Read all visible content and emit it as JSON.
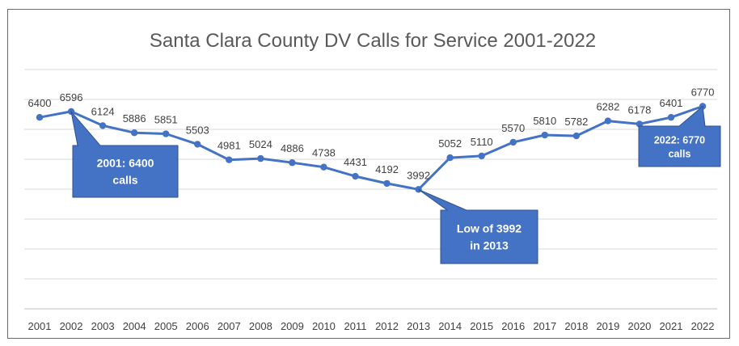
{
  "chart_data": {
    "type": "line",
    "title": "Santa Clara County DV Calls for Service 2001-2022",
    "xlabel": "",
    "ylabel": "",
    "ylim": [
      0,
      8000
    ],
    "grid": true,
    "categories": [
      "2001",
      "2002",
      "2003",
      "2004",
      "2005",
      "2006",
      "2007",
      "2008",
      "2009",
      "2010",
      "2011",
      "2012",
      "2013",
      "2014",
      "2015",
      "2016",
      "2017",
      "2018",
      "2019",
      "2020",
      "2021",
      "2022"
    ],
    "series": [
      {
        "values": [
          6400,
          6596,
          6124,
          5886,
          5851,
          5503,
          4981,
          5024,
          4886,
          4738,
          4431,
          4192,
          3992,
          5052,
          5110,
          5570,
          5810,
          5782,
          6282,
          6178,
          6401,
          6770
        ],
        "color": "#4472C4"
      }
    ],
    "annotations": [
      {
        "lines": [
          "2001: 6400",
          "calls"
        ],
        "target": "2002"
      },
      {
        "lines": [
          "Low of 3992",
          "in 2013"
        ],
        "target": "2013"
      },
      {
        "lines": [
          "2022: 6770",
          "calls"
        ],
        "target": "2022"
      }
    ]
  },
  "colors": {
    "line": "#4472C4",
    "callout_fill": "#4472C4",
    "callout_border": "#2F528F",
    "grid": "#D9D9D9"
  }
}
